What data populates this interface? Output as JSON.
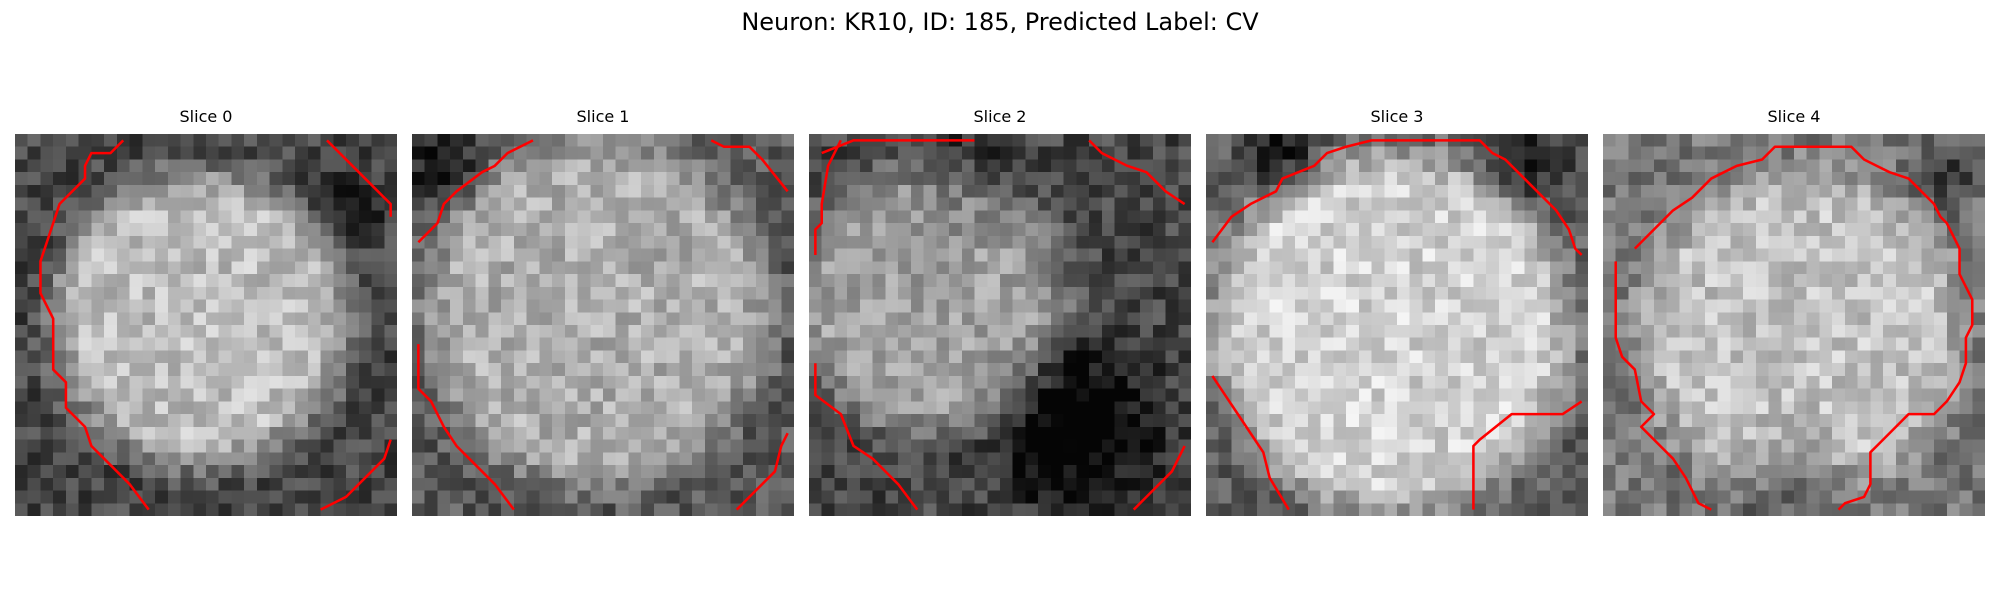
{
  "figure": {
    "title": "Neuron: KR10, ID: 185, Predicted Label: CV"
  },
  "panels": [
    {
      "title": "Slice 0"
    },
    {
      "title": "Slice 1"
    },
    {
      "title": "Slice 2"
    },
    {
      "title": "Slice 3"
    },
    {
      "title": "Slice 4"
    }
  ],
  "colors": {
    "contour": "#ff0000"
  }
}
